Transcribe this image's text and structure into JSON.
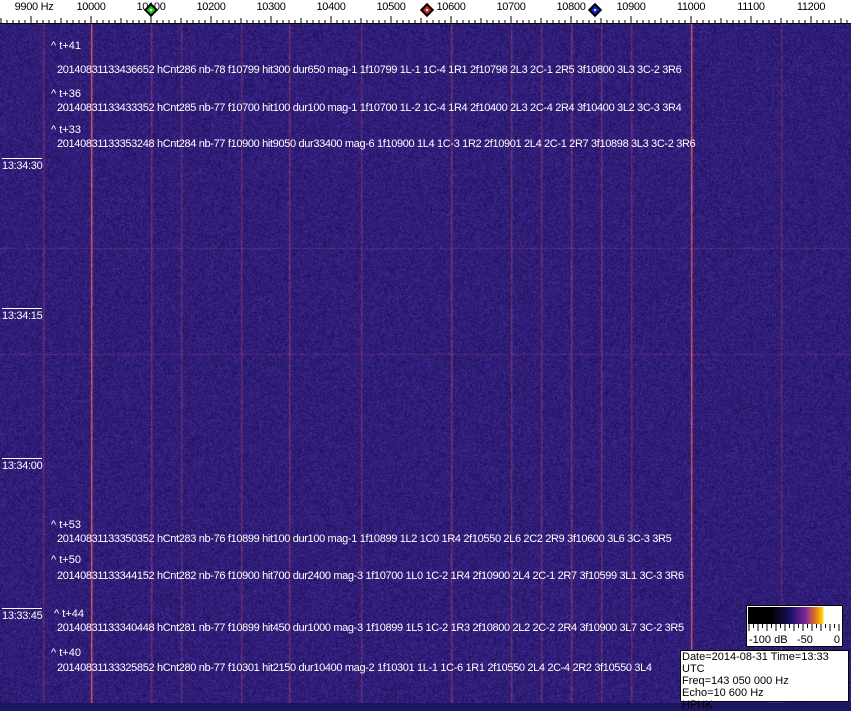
{
  "frequency_axis": {
    "labels": [
      "9900 Hz",
      "10000",
      "10100",
      "10200",
      "10300",
      "10400",
      "10500",
      "10600",
      "10700",
      "10800",
      "10900",
      "11000",
      "11100",
      "11200"
    ],
    "values": [
      9900,
      10000,
      10100,
      10200,
      10300,
      10400,
      10500,
      10600,
      10700,
      10800,
      10900,
      11000,
      11100,
      11200
    ]
  },
  "markers": [
    {
      "color": "#22cc22",
      "freq_hz": 10100
    },
    {
      "color": "#cc2222",
      "freq_hz": 10560
    },
    {
      "color": "#1122cc",
      "freq_hz": 10840
    }
  ],
  "time_labels": [
    "13:34:30",
    "13:34:15",
    "13:34:00",
    "13:33:45"
  ],
  "detections": [
    {
      "rel": "^ t+41",
      "text": "20140831133436652 hCnt286 nb-78 f10799 hit300 dur650 mag-1 1f10799 1L-1 1C-4 1R1 2f10798 2L3 2C-1 2R5 3f10800 3L3 3C-2 3R6"
    },
    {
      "rel": "^ t+36",
      "text": "20140831133433352 hCnt285 nb-77 f10700 hit100 dur100 mag-1 1f10700 1L-2 1C-4 1R4 2f10400 2L3 2C-4 2R4 3f10400 3L2 3C-3 3R4"
    },
    {
      "rel": "^ t+33",
      "text": "20140831133353248 hCnt284 nb-77 f10900 hit9050 dur33400 mag-6 1f10900 1L4 1C-3 1R2 2f10901 2L4 2C-1 2R7 3f10898 3L3 3C-2 3R6"
    },
    {
      "rel": "^ t+53",
      "text": "20140831133350352 hCnt283 nb-76 f10899 hit100 dur100 mag-1 1f10899 1L2 1C0 1R4 2f10550 2L6 2C2 2R9 3f10600 3L6 3C-3 3R5"
    },
    {
      "rel": "^ t+50",
      "text": "20140831133344152 hCnt282 nb-76 f10900 hit700 dur2400 mag-3 1f10700 1L0 1C-2 1R4 2f10900 2L4 2C-1 2R7 3f10599 3L1 3C-3 3R6"
    },
    {
      "rel": "^ t+44",
      "text": "20140831133340448 hCnt281 nb-77 f10899 hit450 dur1000 mag-3 1f10899 1L5 1C-2 1R3 2f10800 2L2 2C-2 2R4 3f10900 3L7 3C-2 3R5"
    },
    {
      "rel": "^ t+40",
      "text": "20140831133325852 hCnt280 nb-77 f10301 hit2150 dur10400 mag-2 1f10301 1L-1 1C-6 1R1 2f10550 2L4 2C-4 2R2 3f10550 3L4"
    }
  ],
  "colorbar": {
    "labels": [
      "-100 dB",
      "-50",
      "0"
    ]
  },
  "info": {
    "date_time": "Date=2014-08-31 Time=13:33 UTC",
    "freq": "Freq=143 050 000 Hz",
    "echo": "Echo=10 600 Hz",
    "station": "HPHK"
  }
}
